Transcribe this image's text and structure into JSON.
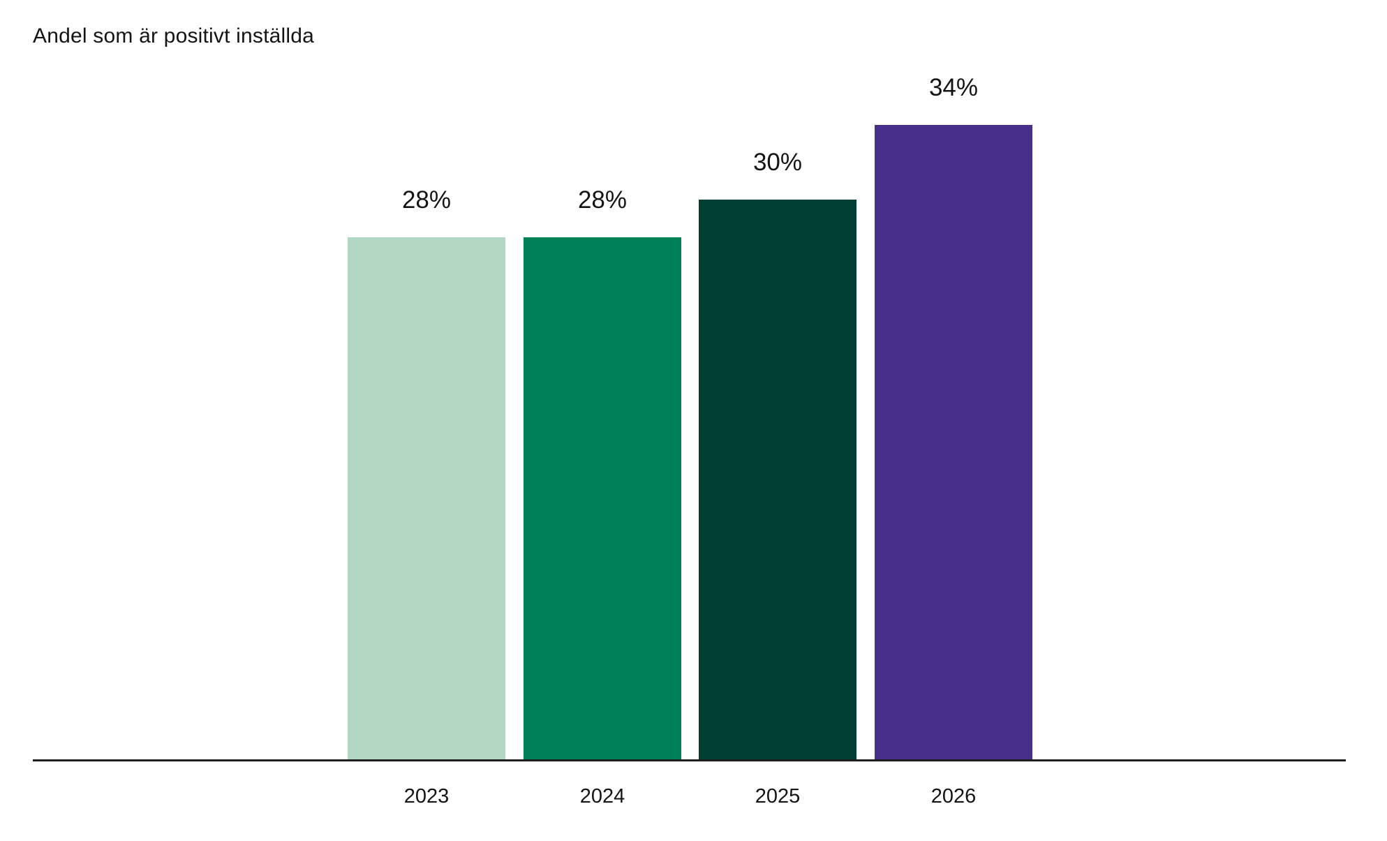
{
  "page": {
    "background": "#ffffff",
    "text_color": "#141414",
    "axis_line_color": "#1e1e1e"
  },
  "chart_data": {
    "type": "bar",
    "title": "Andel som är positivt inställda",
    "categories": [
      "2023",
      "2024",
      "2025",
      "2026"
    ],
    "values": [
      28,
      28,
      30,
      34
    ],
    "value_labels": [
      "28%",
      "28%",
      "30%",
      "34%"
    ],
    "series_colors": [
      "#b2d7c2",
      "#008259",
      "#003e33",
      "#46308c"
    ],
    "unit": "%",
    "xlabel": "",
    "ylabel": "",
    "ylim": [
      0,
      40
    ],
    "grid": false,
    "legend": "none",
    "bar_label_position": "above",
    "tick_label_position": "below-axis"
  }
}
